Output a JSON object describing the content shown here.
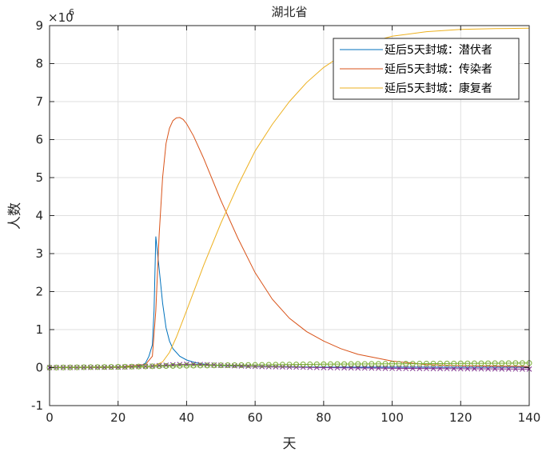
{
  "chart_data": {
    "type": "line",
    "title": "湖北省",
    "xlabel": "天",
    "ylabel": "人数",
    "y_multiplier": "×10",
    "y_exponent": "6",
    "xlim": [
      0,
      140
    ],
    "ylim": [
      -1,
      9
    ],
    "xticks": [
      "0",
      "20",
      "40",
      "60",
      "80",
      "100",
      "120",
      "140"
    ],
    "yticks": [
      "-1",
      "0",
      "1",
      "2",
      "3",
      "4",
      "5",
      "6",
      "7",
      "8",
      "9"
    ],
    "grid": true,
    "legend_position": "top-right",
    "series": [
      {
        "name": "延后5天封城：潜伏者",
        "color": "#0072BD",
        "x": [
          0,
          20,
          25,
          27,
          28,
          29,
          30,
          30.5,
          31,
          32,
          33,
          34,
          35,
          36,
          38,
          40,
          43,
          46,
          50,
          60,
          80,
          100,
          120,
          140
        ],
        "y": [
          0.005,
          0.01,
          0.03,
          0.06,
          0.12,
          0.3,
          0.6,
          1.5,
          3.45,
          2.6,
          1.7,
          1.05,
          0.7,
          0.5,
          0.3,
          0.2,
          0.12,
          0.08,
          0.05,
          0.03,
          0.01,
          0.01,
          0.01,
          0.01
        ]
      },
      {
        "name": "延后5天封城：传染者",
        "color": "#D95319",
        "x": [
          0,
          20,
          28,
          30,
          31,
          32,
          33,
          34,
          35,
          36,
          37,
          38,
          39,
          40,
          42,
          45,
          50,
          55,
          60,
          65,
          70,
          75,
          80,
          85,
          90,
          100,
          110,
          120,
          140
        ],
        "y": [
          0.005,
          0.02,
          0.08,
          0.3,
          1.5,
          3.5,
          5.0,
          5.9,
          6.3,
          6.5,
          6.57,
          6.58,
          6.53,
          6.42,
          6.1,
          5.5,
          4.4,
          3.4,
          2.5,
          1.8,
          1.3,
          0.95,
          0.7,
          0.5,
          0.35,
          0.17,
          0.08,
          0.05,
          0.03
        ]
      },
      {
        "name": "延后5天封城：康复者",
        "color": "#EDB120",
        "x": [
          0,
          20,
          30,
          33,
          35,
          37,
          40,
          45,
          50,
          55,
          60,
          65,
          70,
          75,
          80,
          85,
          90,
          95,
          100,
          110,
          120,
          130,
          140
        ],
        "y": [
          0,
          0.005,
          0.03,
          0.15,
          0.4,
          0.8,
          1.5,
          2.7,
          3.8,
          4.8,
          5.7,
          6.4,
          7.0,
          7.5,
          7.9,
          8.2,
          8.45,
          8.6,
          8.72,
          8.84,
          8.9,
          8.92,
          8.93
        ]
      },
      {
        "name": "",
        "color": "#7E2F8E",
        "marker": "x",
        "x": [
          0,
          20,
          30,
          35,
          40,
          45,
          50,
          60,
          80,
          100,
          120,
          140
        ],
        "y": [
          0,
          0.01,
          0.04,
          0.07,
          0.09,
          0.08,
          0.06,
          0.03,
          0.0,
          -0.02,
          -0.03,
          -0.04
        ]
      },
      {
        "name": "",
        "color": "#77AC30",
        "marker": "o",
        "x": [
          0,
          20,
          40,
          60,
          80,
          100,
          120,
          140
        ],
        "y": [
          0,
          0.02,
          0.05,
          0.07,
          0.09,
          0.1,
          0.11,
          0.12
        ]
      }
    ]
  }
}
